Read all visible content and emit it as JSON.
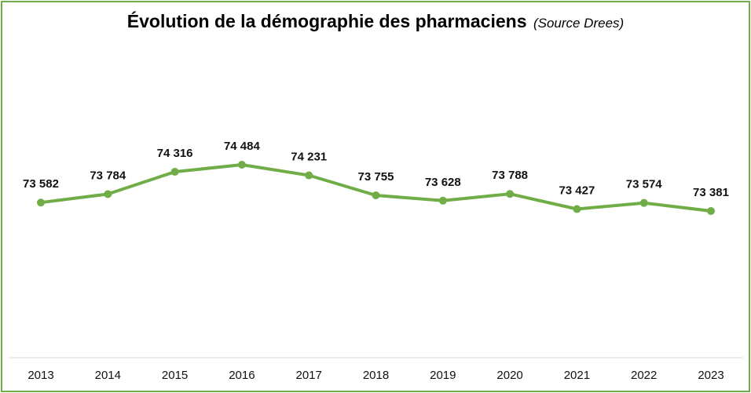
{
  "title": {
    "main": "Évolution de la démographie des pharmaciens",
    "source": "(Source Drees)"
  },
  "colors": {
    "line": "#70ad47",
    "border": "#70ad47",
    "axis": "#d9d9d9"
  },
  "chart_data": {
    "type": "line",
    "title": "Évolution de la démographie des pharmaciens (Source Drees)",
    "xlabel": "",
    "ylabel": "",
    "grid": false,
    "legend": "none",
    "categories": [
      "2013",
      "2014",
      "2015",
      "2016",
      "2017",
      "2018",
      "2019",
      "2020",
      "2021",
      "2022",
      "2023"
    ],
    "series": [
      {
        "values": [
          73582,
          73784,
          74316,
          74484,
          74231,
          73755,
          73628,
          73788,
          73427,
          73574,
          73381
        ],
        "labels": [
          "73 582",
          "73 784",
          "74 316",
          "74 484",
          "74 231",
          "73 755",
          "73 628",
          "73 788",
          "73 427",
          "73 574",
          "73 381"
        ]
      }
    ]
  }
}
